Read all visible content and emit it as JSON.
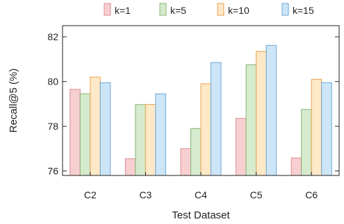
{
  "chart_data": {
    "type": "bar",
    "xlabel": "Test Dataset",
    "ylabel": "Recall@5 (%)",
    "ylim": [
      75.8,
      82.5
    ],
    "yticks": [
      76,
      78,
      80,
      82
    ],
    "categories": [
      "C2",
      "C3",
      "C4",
      "C5",
      "C6"
    ],
    "legend_position": "top-center",
    "grid": false,
    "series": [
      {
        "name": "k=1",
        "values": [
          79.65,
          76.55,
          77.0,
          78.35,
          76.58
        ],
        "fill": "#f8cfd0",
        "stroke": "#d98a8d"
      },
      {
        "name": "k=5",
        "values": [
          79.45,
          78.97,
          77.9,
          80.75,
          78.75
        ],
        "fill": "#d6ebcd",
        "stroke": "#84b072"
      },
      {
        "name": "k=10",
        "values": [
          80.2,
          78.98,
          79.9,
          81.35,
          80.1
        ],
        "fill": "#fde8c8",
        "stroke": "#e6a34d"
      },
      {
        "name": "k=15",
        "values": [
          79.95,
          79.45,
          80.85,
          81.62,
          79.95
        ],
        "fill": "#cde6f7",
        "stroke": "#6aa6d4"
      }
    ]
  }
}
